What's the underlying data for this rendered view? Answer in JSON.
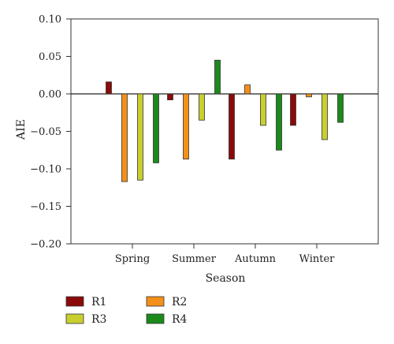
{
  "chart_data": {
    "type": "bar",
    "title": "",
    "xlabel": "Season",
    "ylabel": "AIE",
    "ylim": [
      -0.2,
      0.1
    ],
    "yticks": [
      "0.10",
      "0.05",
      "0.00",
      "−0.05",
      "−0.10",
      "−0.15",
      "−0.20"
    ],
    "ytick_values": [
      0.1,
      0.05,
      0.0,
      -0.05,
      -0.1,
      -0.15,
      -0.2
    ],
    "categories": [
      "Spring",
      "Summer",
      "Autumn",
      "Winter"
    ],
    "series": [
      {
        "name": "R1",
        "color": "#8b0a0a",
        "values": [
          0.016,
          -0.008,
          -0.087,
          -0.042
        ]
      },
      {
        "name": "R2",
        "color": "#f39019",
        "values": [
          -0.117,
          -0.087,
          0.012,
          -0.004
        ]
      },
      {
        "name": "R3",
        "color": "#c8cf2e",
        "values": [
          -0.115,
          -0.035,
          -0.042,
          -0.061
        ]
      },
      {
        "name": "R4",
        "color": "#1b8a1b",
        "values": [
          -0.092,
          0.045,
          -0.075,
          -0.038
        ]
      }
    ],
    "legend_position": "bottom-left",
    "grid": false
  }
}
